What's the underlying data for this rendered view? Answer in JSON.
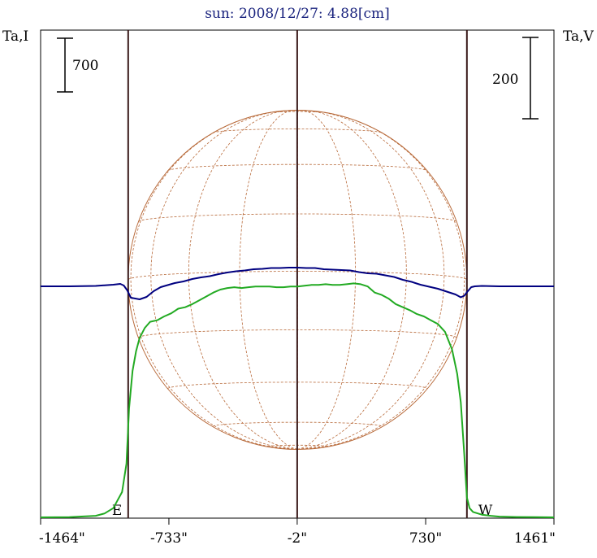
{
  "chart_data": {
    "type": "line",
    "title": "sun: 2008/12/27: 4.88[cm]",
    "ylabel_left": "Ta,I",
    "ylabel_right": "Ta,V",
    "xlim": [
      -1464,
      1461
    ],
    "x_ticks": [
      "-1464\"",
      "-733\"",
      "-2\"",
      "730\"",
      "1461\""
    ],
    "x_tick_values": [
      -1464,
      -733,
      -2,
      730,
      1461
    ],
    "limb_markers": {
      "east": "E",
      "west": "W",
      "x": [
        -965,
        965
      ],
      "line_color": "#3a1a1a"
    },
    "scale_bar_I": {
      "label": "700",
      "value": 700
    },
    "scale_bar_V": {
      "label": "200",
      "value": 200
    },
    "grid": false,
    "colors": {
      "I": "#22aa22",
      "V": "#000080",
      "disk": "#b86a3a",
      "title": "#1a237e"
    },
    "disk": {
      "radius_arcsec": 965
    },
    "series": [
      {
        "key": "I",
        "x": [
          -1464,
          -1300,
          -1150,
          -1100,
          -1050,
          -1000,
          -975,
          -960,
          -940,
          -920,
          -900,
          -870,
          -840,
          -800,
          -760,
          -720,
          -680,
          -640,
          -600,
          -560,
          -520,
          -480,
          -440,
          -400,
          -360,
          -320,
          -280,
          -240,
          -200,
          -160,
          -120,
          -80,
          -40,
          0,
          40,
          80,
          120,
          160,
          200,
          240,
          280,
          320,
          360,
          400,
          440,
          480,
          520,
          560,
          600,
          640,
          680,
          720,
          760,
          800,
          840,
          880,
          910,
          930,
          950,
          965,
          980,
          1000,
          1050,
          1100,
          1150,
          1250,
          1350,
          1461
        ],
        "y": [
          0,
          2,
          20,
          50,
          120,
          330,
          700,
          1420,
          1910,
          2165,
          2340,
          2470,
          2550,
          2570,
          2620,
          2660,
          2720,
          2740,
          2780,
          2830,
          2880,
          2930,
          2970,
          2990,
          3000,
          2990,
          3000,
          3010,
          3010,
          3010,
          3000,
          3000,
          3010,
          3010,
          3020,
          3030,
          3030,
          3040,
          3030,
          3030,
          3040,
          3050,
          3040,
          3010,
          2930,
          2900,
          2850,
          2780,
          2740,
          2700,
          2650,
          2620,
          2570,
          2520,
          2420,
          2190,
          1870,
          1500,
          820,
          260,
          120,
          70,
          35,
          20,
          10,
          4,
          2,
          0
        ]
      },
      {
        "key": "V",
        "x": [
          -1464,
          -1300,
          -1150,
          -1050,
          -1010,
          -990,
          -970,
          -950,
          -900,
          -860,
          -820,
          -780,
          -740,
          -700,
          -650,
          -600,
          -550,
          -500,
          -450,
          -400,
          -350,
          -300,
          -250,
          -200,
          -150,
          -100,
          -50,
          0,
          50,
          100,
          150,
          200,
          250,
          300,
          350,
          400,
          450,
          500,
          550,
          600,
          650,
          700,
          750,
          800,
          850,
          900,
          930,
          950,
          970,
          990,
          1010,
          1050,
          1150,
          1300,
          1461
        ],
        "y": [
          0,
          0,
          1,
          4,
          6,
          2,
          -10,
          -28,
          -32,
          -26,
          -12,
          -2,
          3,
          8,
          12,
          18,
          22,
          25,
          30,
          34,
          37,
          39,
          42,
          43,
          45,
          45,
          46,
          46,
          45,
          45,
          42,
          41,
          40,
          39,
          35,
          32,
          31,
          27,
          23,
          16,
          11,
          4,
          -1,
          -6,
          -13,
          -20,
          -27,
          -23,
          -12,
          -2,
          0,
          1,
          0,
          0,
          0
        ]
      }
    ]
  }
}
